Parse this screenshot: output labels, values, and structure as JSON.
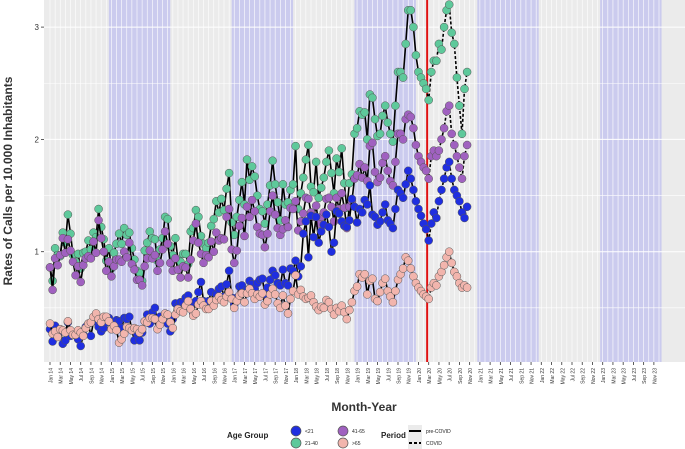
{
  "chart_data": {
    "type": "line",
    "title": "",
    "xlabel": "Month-Year",
    "ylabel": "Rates of Calls per 10.000 Inhabitants",
    "ylim": [
      0.0,
      3.25
    ],
    "yticks": [
      1,
      2,
      3
    ],
    "start": "2014-01",
    "end": "2023-12",
    "covid_cutoff": "2020-03",
    "shaded_years": [
      "2015",
      "2017",
      "2019",
      "2021",
      "2023"
    ],
    "grid": true,
    "legend_position": "bottom",
    "x_tick_labels": [
      "Jan 14",
      "Mar 14",
      "May 14",
      "Jul 14",
      "Sep 14",
      "Nov 14",
      "Jan 15",
      "Mar 15",
      "May 15",
      "Jul 15",
      "Sep 15",
      "Nov 15",
      "Jan 16",
      "Mar 16",
      "May 16",
      "Jul 16",
      "Sep 16",
      "Nov 16",
      "Jan 17",
      "Mar 17",
      "May 17",
      "Jul 17",
      "Sep 17",
      "Nov 17",
      "Jan 18",
      "Mar 18",
      "May 18",
      "Jul 18",
      "Sep 18",
      "Nov 18",
      "Jan 19",
      "Mar 19",
      "May 19",
      "Jul 19",
      "Sep 19",
      "Nov 19",
      "Jan 20",
      "Mar 20",
      "May 20",
      "Jul 20",
      "Sep 20",
      "Nov 20",
      "Jan 21",
      "Mar 21",
      "May 21",
      "Jul 21",
      "Sep 21",
      "Nov 21",
      "Jan 22",
      "Mar 22",
      "May 22",
      "Jul 22",
      "Sep 22",
      "Nov 22",
      "Jan 23",
      "Mar 23",
      "May 23",
      "Jul 23",
      "Sep 23",
      "Nov 23"
    ],
    "legend": {
      "age_title": "Age Group",
      "age_items": [
        {
          "label": "<21",
          "color": "#1f2ee0"
        },
        {
          "label": "41-65",
          "color": "#a061c0"
        },
        {
          "label": "21-40",
          "color": "#5ec99b"
        },
        {
          "label": ">65",
          "color": "#f2b5ad"
        }
      ],
      "period_title": "Period",
      "period_items": [
        {
          "label": "pre-COVID",
          "style": "solid"
        },
        {
          "label": "COVID",
          "style": "dashed"
        }
      ]
    },
    "series": [
      {
        "name": "21-40",
        "color": "#5ec99b",
        "values": [
          0.86,
          0.74,
          1.03,
          0.97,
          0.96,
          1.17,
          1.08,
          1.33,
          1.16,
          0.97,
          0.91,
          0.98,
          0.85,
          0.99,
          1.0,
          1.1,
          1.02,
          1.17,
          1.13,
          1.38,
          1.22,
          1.11,
          0.92,
          1.03,
          0.85,
          0.99,
          1.07,
          1.16,
          1.07,
          1.21,
          1.15,
          1.17,
          1.03,
          0.93,
          0.83,
          0.81,
          0.74,
          1.01,
          1.08,
          1.18,
          1.12,
          1.11,
          0.92,
          1.02,
          1.12,
          1.31,
          1.29,
          1.05,
          0.97,
          1.12,
          0.93,
          0.91,
          0.98,
          0.98,
          0.89,
          1.18,
          1.21,
          1.37,
          1.31,
          1.14,
          1.07,
          1.03,
          1.08,
          1.23,
          1.29,
          1.45,
          1.35,
          1.47,
          1.37,
          1.56,
          1.7,
          1.26,
          1.15,
          1.31,
          1.46,
          1.62,
          1.42,
          1.82,
          1.64,
          1.76,
          1.67,
          1.5,
          1.38,
          1.36,
          1.25,
          1.42,
          1.59,
          1.81,
          1.6,
          1.44,
          1.28,
          1.6,
          1.42,
          1.44,
          1.55,
          1.6,
          1.94,
          1.38,
          1.52,
          1.66,
          1.82,
          1.95,
          1.58,
          1.53,
          1.8,
          1.48,
          1.57,
          1.66,
          1.8,
          1.9,
          1.7,
          1.52,
          1.83,
          1.71,
          1.92,
          1.61,
          1.39,
          1.61,
          1.69,
          2.05,
          2.1,
          2.25,
          2.22,
          2.24,
          2.0,
          2.4,
          2.37,
          2.18,
          2.03,
          2.05,
          2.21,
          2.3,
          2.15,
          2.05,
          1.98,
          2.3,
          2.6,
          2.6,
          2.55,
          2.85,
          3.15,
          3.15,
          3.0,
          2.75,
          2.6,
          2.55,
          2.5,
          2.45,
          2.35,
          2.6,
          2.7,
          2.7,
          2.85,
          2.8,
          3.0,
          3.15,
          3.2,
          2.95,
          2.85,
          2.55,
          2.3,
          2.05,
          2.45,
          2.6
        ]
      },
      {
        "name": "41-65",
        "color": "#a061c0",
        "values": [
          0.86,
          0.66,
          0.94,
          0.88,
          0.97,
          1.12,
          0.99,
          1.11,
          1.01,
          0.91,
          0.79,
          0.87,
          0.73,
          0.88,
          0.94,
          0.96,
          0.94,
          1.09,
          0.99,
          1.28,
          1.12,
          1.0,
          0.83,
          0.91,
          0.78,
          0.87,
          0.93,
          0.93,
          0.91,
          1.0,
          0.95,
          1.08,
          0.89,
          0.84,
          0.75,
          0.75,
          0.7,
          0.87,
          0.94,
          1.01,
          0.94,
          0.97,
          0.83,
          0.9,
          1.02,
          1.18,
          1.07,
          0.9,
          0.83,
          0.94,
          0.84,
          0.77,
          0.87,
          0.86,
          0.77,
          0.93,
          1.1,
          1.25,
          1.08,
          0.98,
          0.9,
          0.97,
          0.95,
          1.09,
          1.0,
          1.17,
          1.1,
          1.12,
          1.11,
          1.31,
          1.38,
          1.02,
          0.9,
          1.01,
          1.23,
          1.3,
          1.14,
          1.4,
          1.31,
          1.46,
          1.36,
          1.22,
          1.16,
          1.15,
          1.04,
          1.16,
          1.36,
          1.5,
          1.33,
          1.21,
          1.15,
          1.2,
          1.28,
          1.22,
          1.39,
          1.38,
          1.45,
          1.19,
          1.27,
          1.34,
          1.48,
          1.47,
          1.35,
          1.31,
          1.41,
          1.25,
          1.31,
          1.35,
          1.47,
          1.48,
          1.4,
          1.27,
          1.48,
          1.38,
          1.52,
          1.39,
          1.21,
          1.4,
          1.45,
          1.65,
          1.68,
          1.78,
          1.66,
          1.75,
          1.63,
          1.94,
          1.97,
          1.71,
          1.62,
          1.66,
          1.79,
          1.85,
          1.72,
          1.63,
          1.59,
          1.8,
          2.05,
          2.05,
          2.0,
          2.18,
          2.22,
          2.2,
          2.1,
          1.95,
          1.85,
          1.8,
          1.75,
          1.72,
          1.65,
          1.85,
          1.9,
          1.85,
          1.9,
          2.0,
          2.1,
          2.25,
          2.3,
          2.05,
          1.95,
          1.85,
          1.75,
          1.65,
          1.85,
          1.95
        ]
      },
      {
        "name": "<21",
        "color": "#1f2ee0",
        "values": [
          0.31,
          0.2,
          0.34,
          0.26,
          0.31,
          0.18,
          0.21,
          0.37,
          0.25,
          0.26,
          0.27,
          0.22,
          0.16,
          0.26,
          0.33,
          0.36,
          0.25,
          0.38,
          0.41,
          0.33,
          0.29,
          0.32,
          0.37,
          0.41,
          0.31,
          0.33,
          0.39,
          0.38,
          0.32,
          0.41,
          0.4,
          0.42,
          0.3,
          0.21,
          0.27,
          0.21,
          0.28,
          0.38,
          0.44,
          0.36,
          0.46,
          0.5,
          0.38,
          0.42,
          0.38,
          0.43,
          0.36,
          0.29,
          0.4,
          0.54,
          0.51,
          0.55,
          0.55,
          0.59,
          0.61,
          0.53,
          0.45,
          0.56,
          0.64,
          0.73,
          0.56,
          0.52,
          0.56,
          0.64,
          0.56,
          0.62,
          0.67,
          0.69,
          0.6,
          0.71,
          0.83,
          0.59,
          0.53,
          0.59,
          0.69,
          0.7,
          0.64,
          0.66,
          0.74,
          0.71,
          0.67,
          0.72,
          0.75,
          0.76,
          0.62,
          0.68,
          0.75,
          0.83,
          0.79,
          0.72,
          0.7,
          0.84,
          0.72,
          0.7,
          0.85,
          0.83,
          0.92,
          0.78,
          0.87,
          1.16,
          1.27,
          0.95,
          1.32,
          1.13,
          1.31,
          1.08,
          1.18,
          1.24,
          1.33,
          1.22,
          1.0,
          1.08,
          1.36,
          1.34,
          1.27,
          1.23,
          1.22,
          1.28,
          1.47,
          1.4,
          1.26,
          1.38,
          1.35,
          1.46,
          1.42,
          1.59,
          1.33,
          1.31,
          1.24,
          1.27,
          1.35,
          1.42,
          1.28,
          1.25,
          1.21,
          1.38,
          1.55,
          1.52,
          1.48,
          1.6,
          1.72,
          1.65,
          1.55,
          1.45,
          1.38,
          1.32,
          1.25,
          1.2,
          1.1,
          1.25,
          1.35,
          1.3,
          1.45,
          1.55,
          1.65,
          1.75,
          1.8,
          1.65,
          1.55,
          1.5,
          1.45,
          1.35,
          1.3,
          1.4
        ]
      },
      {
        "name": ">65",
        "color": "#f2b5ad",
        "values": [
          0.36,
          0.27,
          0.29,
          0.24,
          0.31,
          0.3,
          0.28,
          0.38,
          0.3,
          0.26,
          0.26,
          0.3,
          0.28,
          0.25,
          0.32,
          0.36,
          0.37,
          0.42,
          0.45,
          0.4,
          0.37,
          0.42,
          0.42,
          0.38,
          0.31,
          0.34,
          0.3,
          0.19,
          0.22,
          0.27,
          0.33,
          0.32,
          0.3,
          0.32,
          0.31,
          0.28,
          0.31,
          0.38,
          0.37,
          0.41,
          0.41,
          0.4,
          0.31,
          0.35,
          0.4,
          0.45,
          0.44,
          0.37,
          0.32,
          0.44,
          0.49,
          0.47,
          0.46,
          0.52,
          0.56,
          0.49,
          0.43,
          0.45,
          0.53,
          0.56,
          0.52,
          0.49,
          0.49,
          0.56,
          0.52,
          0.57,
          0.6,
          0.57,
          0.55,
          0.6,
          0.64,
          0.58,
          0.5,
          0.56,
          0.61,
          0.63,
          0.55,
          0.63,
          0.67,
          0.63,
          0.58,
          0.62,
          0.6,
          0.63,
          0.53,
          0.56,
          0.62,
          0.67,
          0.62,
          0.54,
          0.5,
          0.61,
          0.52,
          0.45,
          0.58,
          0.65,
          0.79,
          0.62,
          0.66,
          0.6,
          0.58,
          0.59,
          0.61,
          0.55,
          0.51,
          0.48,
          0.51,
          0.5,
          0.57,
          0.55,
          0.49,
          0.44,
          0.5,
          0.47,
          0.52,
          0.46,
          0.4,
          0.48,
          0.55,
          0.65,
          0.69,
          0.8,
          0.77,
          0.8,
          0.62,
          0.74,
          0.76,
          0.58,
          0.56,
          0.64,
          0.72,
          0.76,
          0.65,
          0.6,
          0.55,
          0.65,
          0.75,
          0.8,
          0.85,
          0.95,
          0.92,
          0.85,
          0.78,
          0.72,
          0.68,
          0.65,
          0.62,
          0.6,
          0.58,
          0.68,
          0.72,
          0.7,
          0.78,
          0.82,
          0.88,
          0.95,
          1.0,
          0.9,
          0.82,
          0.78,
          0.72,
          0.68,
          0.7,
          0.68
        ]
      }
    ]
  }
}
